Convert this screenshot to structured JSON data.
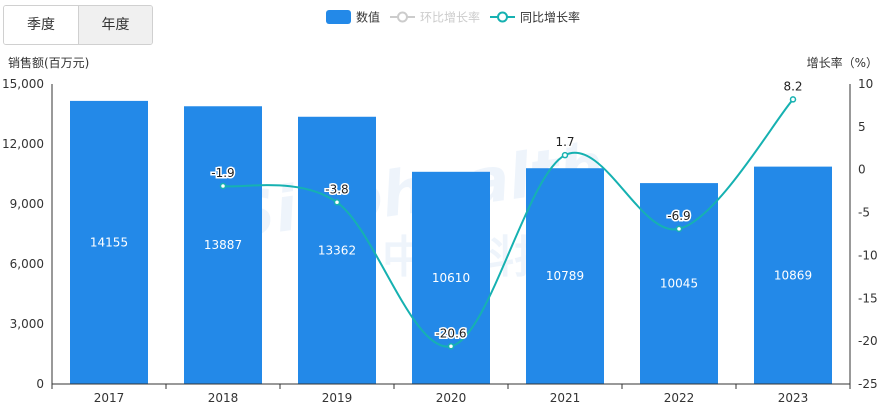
{
  "toggle": {
    "quarter_label": "季度",
    "year_label": "年度",
    "selected": "year"
  },
  "legend": [
    {
      "label": "数值",
      "kind": "bar",
      "color": "#2389e8",
      "active": true
    },
    {
      "label": "环比增长率",
      "kind": "line",
      "color": "#cccccc",
      "active": false
    },
    {
      "label": "同比增长率",
      "kind": "line",
      "color": "#16b1b1",
      "active": true
    }
  ],
  "watermark": {
    "text_en": "Sinohealth",
    "text_cn": "中康科技"
  },
  "chart_data": {
    "type": "bar",
    "categories": [
      "2017",
      "2018",
      "2019",
      "2020",
      "2021",
      "2022",
      "2023"
    ],
    "series": [
      {
        "name": "数值",
        "type": "bar",
        "axis": "left",
        "color": "#2389e8",
        "values": [
          14155,
          13887,
          13362,
          10610,
          10789,
          10045,
          10869
        ]
      },
      {
        "name": "同比增长率",
        "type": "line",
        "axis": "right",
        "color": "#16b1b1",
        "values": [
          null,
          -1.9,
          -3.8,
          -20.6,
          1.7,
          -6.9,
          8.2
        ],
        "labels": [
          "",
          "-1.9",
          "-3.8",
          "-20.6",
          "1.7",
          "-6.9",
          "8.2"
        ]
      }
    ],
    "y_left": {
      "label": "销售额(百万元)",
      "min": 0,
      "max": 15000,
      "ticks": [
        "0",
        "3,000",
        "6,000",
        "9,000",
        "12,000",
        "15,000"
      ],
      "tick_values": [
        0,
        3000,
        6000,
        9000,
        12000,
        15000
      ]
    },
    "y_right": {
      "label": "增长率（%）",
      "min": -25,
      "max": 10,
      "ticks": [
        "-25",
        "-20",
        "-15",
        "-10",
        "-5",
        "0",
        "5",
        "10"
      ],
      "tick_values": [
        -25,
        -20,
        -15,
        -10,
        -5,
        0,
        5,
        10
      ]
    },
    "grid": false,
    "legend_position": "top-center"
  }
}
